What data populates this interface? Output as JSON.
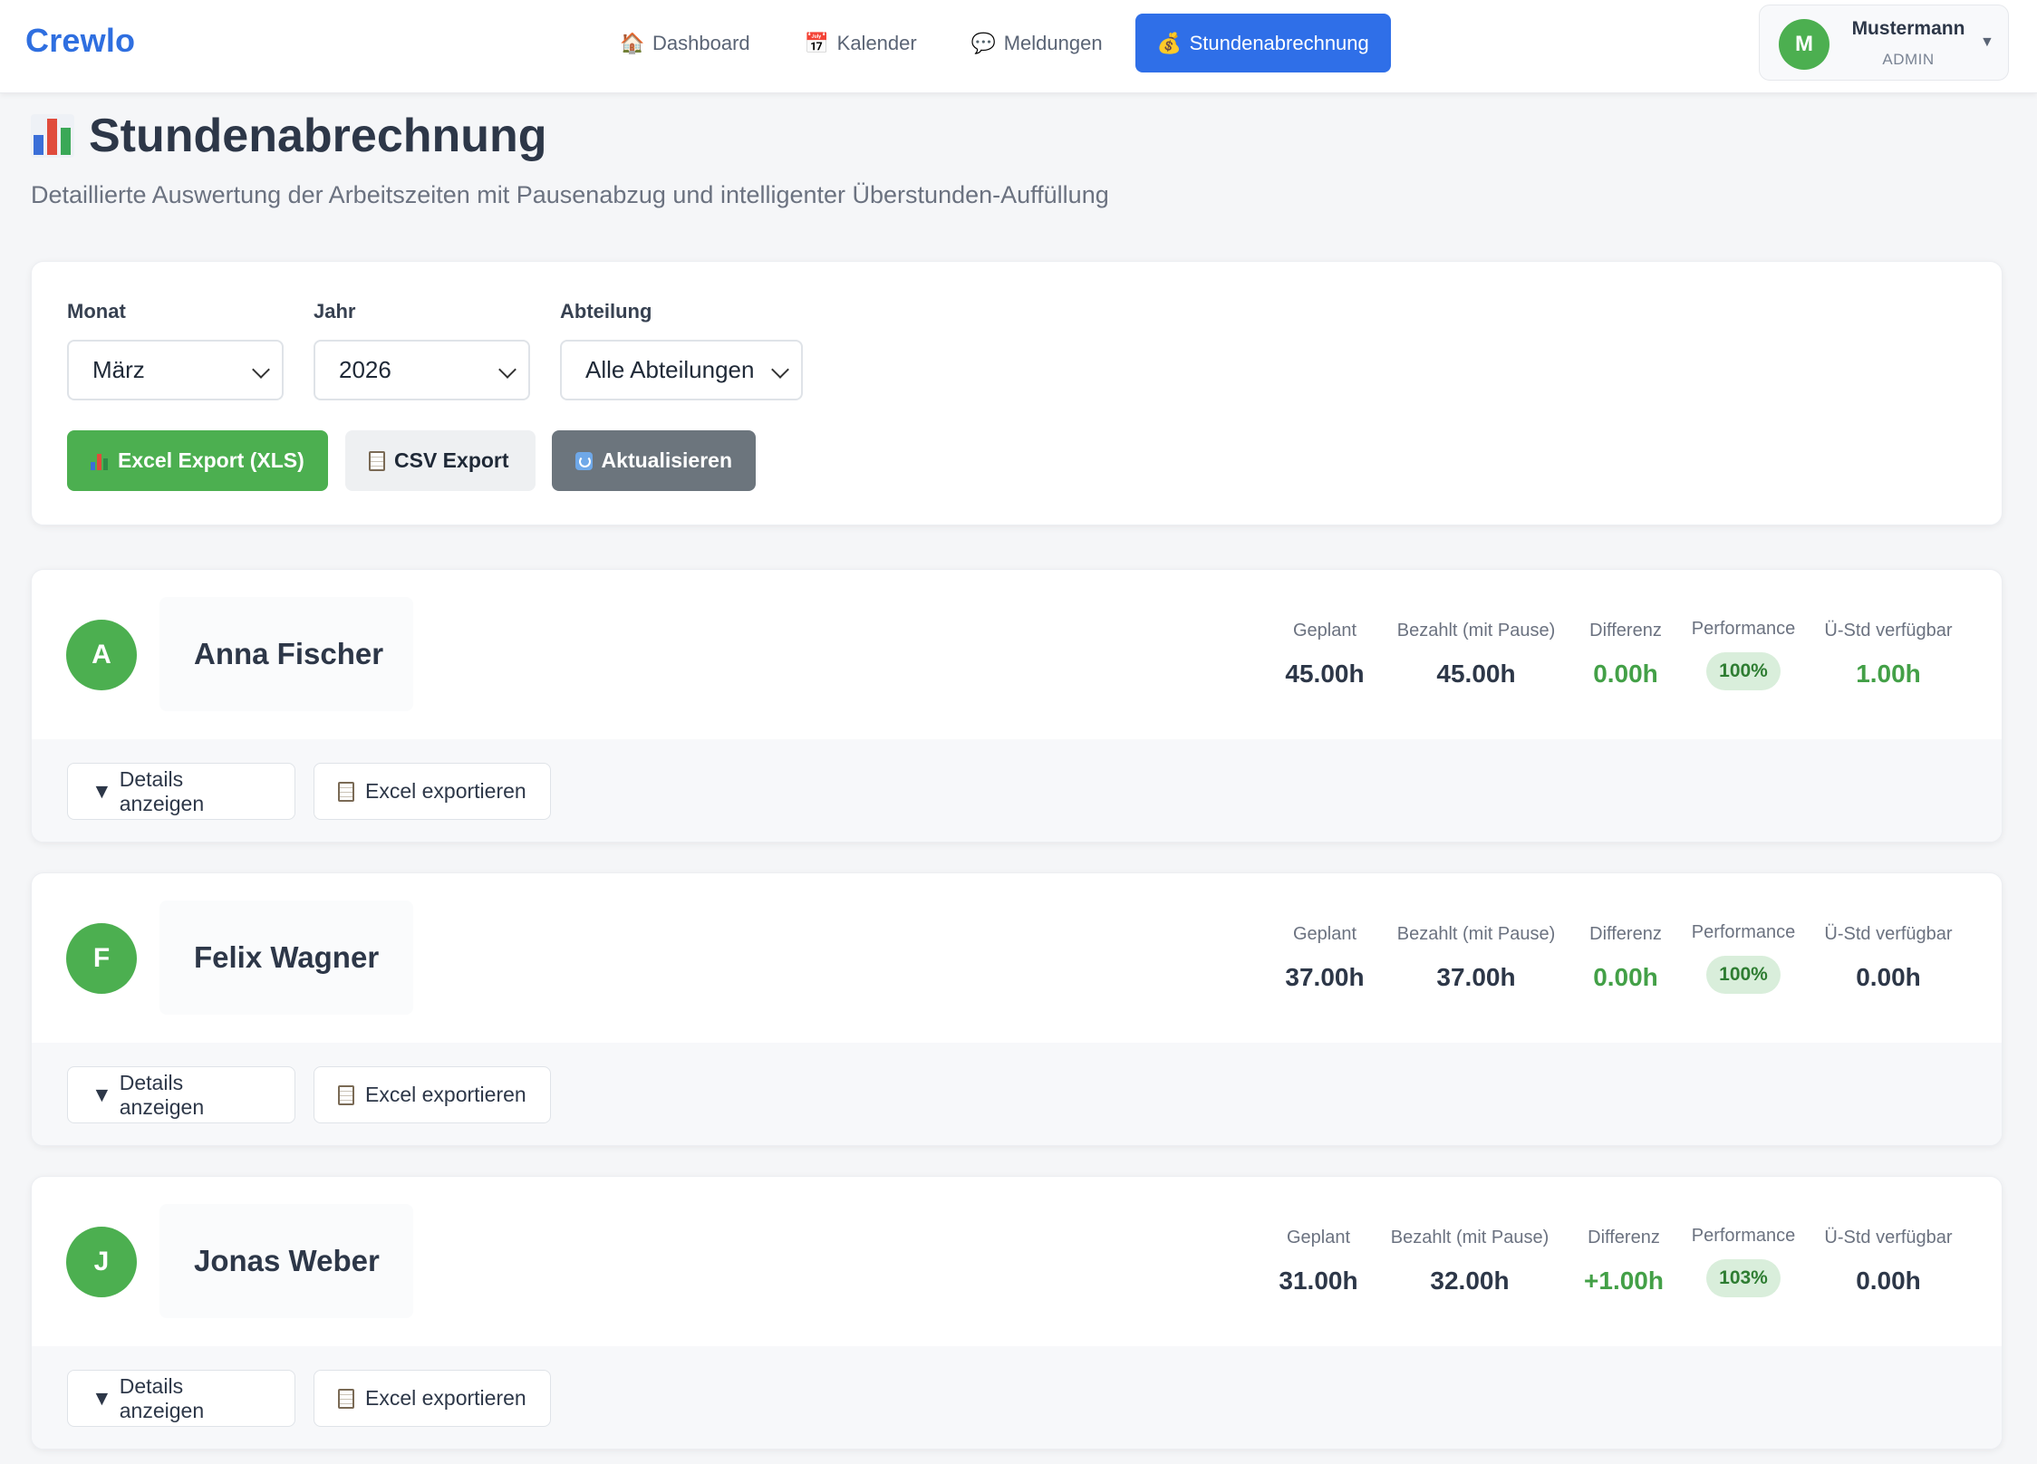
{
  "app": {
    "brand": "Crewlo"
  },
  "nav": [
    {
      "label": "Dashboard",
      "icon": "house-icon",
      "glyph": "🏠",
      "active": false
    },
    {
      "label": "Kalender",
      "icon": "calendar-icon",
      "glyph": "📅",
      "active": false
    },
    {
      "label": "Meldungen",
      "icon": "speech-bubble-icon",
      "glyph": "💬",
      "active": false
    },
    {
      "label": "Stundenabrechnung",
      "icon": "money-bag-icon",
      "glyph": "💰",
      "active": true
    }
  ],
  "user": {
    "initial": "M",
    "name": "Mustermann",
    "role": "ADMIN"
  },
  "page": {
    "title": "Stundenabrechnung",
    "subtitle": "Detaillierte Auswertung der Arbeitszeiten mit Pausenabzug und intelligenter Überstunden-Auffüllung"
  },
  "filters": {
    "month_label": "Monat",
    "month_value": "März",
    "year_label": "Jahr",
    "year_value": "2026",
    "department_label": "Abteilung",
    "department_value": "Alle Abteilungen",
    "excel_export": "Excel Export (XLS)",
    "csv_export": "CSV Export",
    "refresh": "Aktualisieren"
  },
  "stat_labels": {
    "planned": "Geplant",
    "paid": "Bezahlt (mit Pause)",
    "difference": "Differenz",
    "performance": "Performance",
    "overtime": "Ü-Std verfügbar"
  },
  "row_actions": {
    "details": "Details anzeigen",
    "export": "Excel exportieren"
  },
  "employees": [
    {
      "initial": "A",
      "name": "Anna Fischer",
      "planned": "45.00h",
      "paid": "45.00h",
      "difference": "0.00h",
      "performance": "100%",
      "overtime": "1.00h",
      "overtime_highlight": true
    },
    {
      "initial": "F",
      "name": "Felix Wagner",
      "planned": "37.00h",
      "paid": "37.00h",
      "difference": "0.00h",
      "performance": "100%",
      "overtime": "0.00h",
      "overtime_highlight": false
    },
    {
      "initial": "J",
      "name": "Jonas Weber",
      "planned": "31.00h",
      "paid": "32.00h",
      "difference": "+1.00h",
      "performance": "103%",
      "overtime": "0.00h",
      "overtime_highlight": false
    }
  ],
  "colors": {
    "accent": "#2f6fe8",
    "brand": "#2f6fe0",
    "success": "#4caf50",
    "secondary": "#6c757d"
  }
}
